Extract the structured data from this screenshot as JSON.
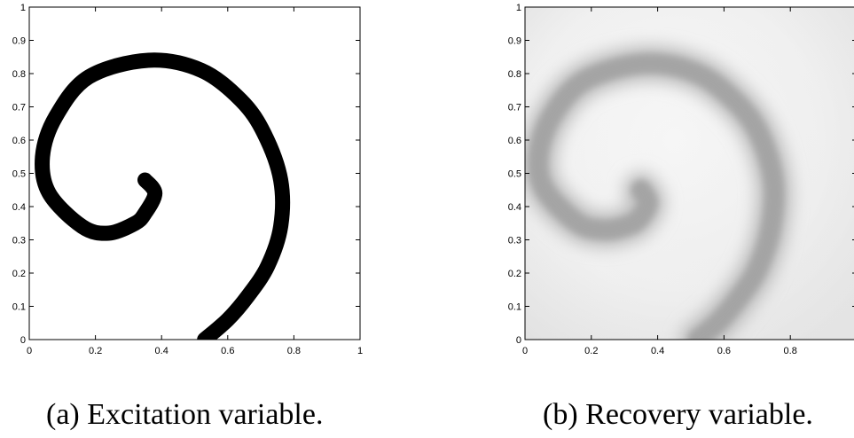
{
  "figures": [
    {
      "id": "a",
      "caption": "(a) Excitation variable.",
      "chart_data": {
        "type": "heatmap",
        "subject": "spiral wave, binary excitation field",
        "xlim": [
          0,
          1
        ],
        "ylim": [
          0,
          1
        ],
        "x_ticks": [
          "0",
          "0.2",
          "0.4",
          "0.6",
          "0.8",
          "1"
        ],
        "y_ticks": [
          "0",
          "0.1",
          "0.2",
          "0.3",
          "0.4",
          "0.5",
          "0.6",
          "0.7",
          "0.8",
          "0.9",
          "1"
        ],
        "colormap": [
          "#ffffff",
          "#000000"
        ],
        "spiral_path": [
          [
            0.35,
            0.48
          ],
          [
            0.38,
            0.44
          ],
          [
            0.35,
            0.38
          ],
          [
            0.32,
            0.35
          ],
          [
            0.24,
            0.32
          ],
          [
            0.16,
            0.34
          ],
          [
            0.06,
            0.44
          ],
          [
            0.04,
            0.55
          ],
          [
            0.08,
            0.67
          ],
          [
            0.18,
            0.79
          ],
          [
            0.36,
            0.84
          ],
          [
            0.52,
            0.81
          ],
          [
            0.64,
            0.72
          ],
          [
            0.71,
            0.62
          ],
          [
            0.76,
            0.48
          ],
          [
            0.76,
            0.34
          ],
          [
            0.72,
            0.22
          ],
          [
            0.66,
            0.13
          ],
          [
            0.6,
            0.06
          ],
          [
            0.53,
            0.0
          ]
        ]
      }
    },
    {
      "id": "b",
      "caption": "(b) Recovery variable.",
      "chart_data": {
        "type": "heatmap",
        "subject": "spiral wave, smooth recovery field",
        "xlim": [
          0,
          1
        ],
        "ylim": [
          0,
          1
        ],
        "x_ticks": [
          "0",
          "0.2",
          "0.4",
          "0.6",
          "0.8"
        ],
        "y_ticks": [
          "0",
          "0.1",
          "0.2",
          "0.3",
          "0.4",
          "0.5",
          "0.6",
          "0.7",
          "0.8",
          "0.9",
          "1"
        ],
        "colormap": [
          "#f6f6f6",
          "#a2a2a2"
        ],
        "spiral_path": [
          [
            0.35,
            0.45
          ],
          [
            0.37,
            0.41
          ],
          [
            0.34,
            0.36
          ],
          [
            0.3,
            0.34
          ],
          [
            0.24,
            0.33
          ],
          [
            0.16,
            0.35
          ],
          [
            0.06,
            0.45
          ],
          [
            0.04,
            0.55
          ],
          [
            0.08,
            0.67
          ],
          [
            0.18,
            0.78
          ],
          [
            0.36,
            0.83
          ],
          [
            0.52,
            0.8
          ],
          [
            0.64,
            0.71
          ],
          [
            0.71,
            0.61
          ],
          [
            0.75,
            0.47
          ],
          [
            0.74,
            0.33
          ],
          [
            0.7,
            0.21
          ],
          [
            0.64,
            0.12
          ],
          [
            0.58,
            0.05
          ],
          [
            0.52,
            0.0
          ]
        ]
      }
    }
  ]
}
